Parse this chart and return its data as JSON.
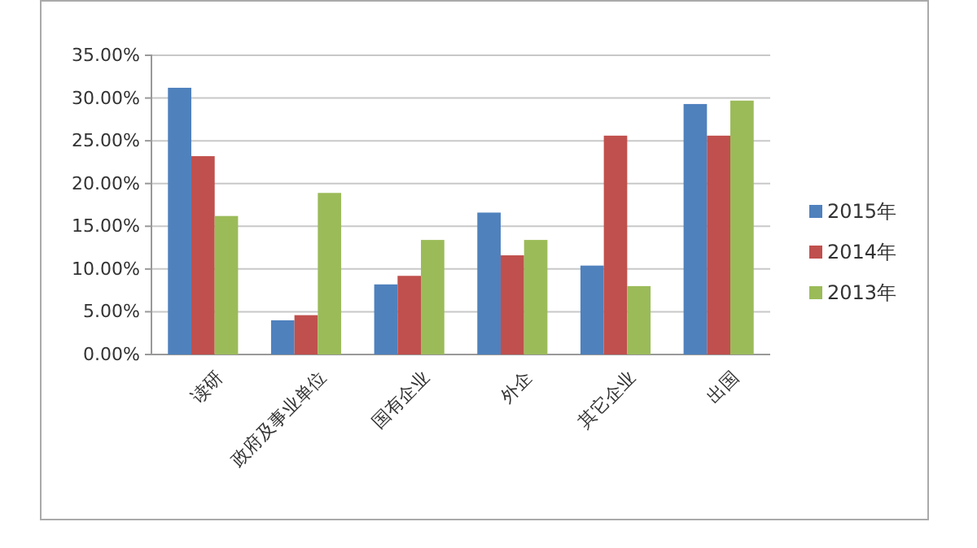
{
  "chart_data": {
    "type": "bar",
    "categories": [
      "读研",
      "政府及事业单位",
      "国有企业",
      "外企",
      "其它企业",
      "出国"
    ],
    "series": [
      {
        "name": "2015年",
        "color": "#4f81bd",
        "values": [
          31.2,
          4.0,
          8.2,
          16.6,
          10.4,
          29.3
        ]
      },
      {
        "name": "2014年",
        "color": "#c0504d",
        "values": [
          23.2,
          4.6,
          9.2,
          11.6,
          25.6,
          25.6
        ]
      },
      {
        "name": "2013年",
        "color": "#9bbb59",
        "values": [
          16.2,
          18.9,
          13.4,
          13.4,
          8.0,
          29.7
        ]
      }
    ],
    "ylim": [
      0,
      35
    ],
    "yticks": [
      {
        "value": 0,
        "label": "0.00%"
      },
      {
        "value": 5,
        "label": "5.00%"
      },
      {
        "value": 10,
        "label": "10.00%"
      },
      {
        "value": 15,
        "label": "15.00%"
      },
      {
        "value": 20,
        "label": "20.00%"
      },
      {
        "value": 25,
        "label": "25.00%"
      },
      {
        "value": 30,
        "label": "30.00%"
      },
      {
        "value": 35,
        "label": "35.00%"
      }
    ],
    "grid": "y",
    "legend": "right"
  }
}
